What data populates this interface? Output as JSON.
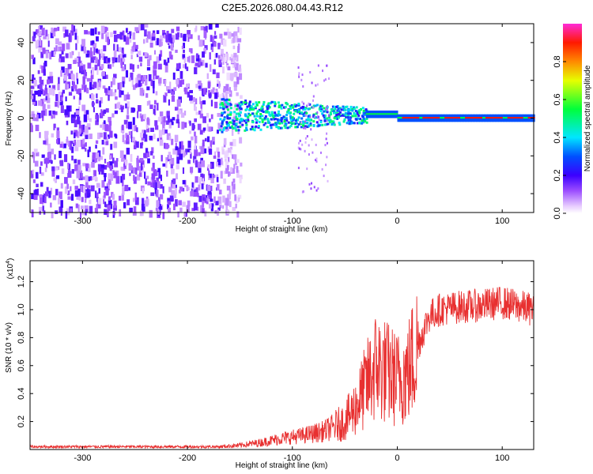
{
  "title": "C2E5.2026.080.04.43.R12",
  "chart_data": [
    {
      "type": "heatmap",
      "title": "",
      "xlabel": "Height of straight line (km)",
      "ylabel": "Frequency (Hz)",
      "xlim": [
        -350,
        130
      ],
      "ylim": [
        -50,
        50
      ],
      "xticks": [
        -300,
        -200,
        -100,
        0,
        100
      ],
      "yticks": [
        -40,
        -20,
        0,
        20,
        40
      ],
      "colorbar": {
        "label": "Normalized spectral amplitude",
        "range": [
          0,
          1
        ],
        "ticks": [
          0.0,
          0.2,
          0.4,
          0.6,
          0.8
        ]
      },
      "regions": [
        {
          "description": "broadband noise",
          "x_range": [
            -350,
            -170
          ],
          "f_range": [
            -50,
            50
          ],
          "amplitude": 0.1
        },
        {
          "description": "signal onset",
          "x_range": [
            -170,
            -30
          ],
          "f_range": [
            -10,
            10
          ],
          "amplitude": 0.4
        },
        {
          "description": "narrowband tone",
          "x_range": [
            -30,
            130
          ],
          "f_center": 0,
          "f_halfwidth": 2,
          "amplitude": 0.9
        }
      ]
    },
    {
      "type": "line",
      "title": "",
      "xlabel": "Height of straight line (km)",
      "ylabel": "SNR (10 * v/v)",
      "yscale_label": "(x10",
      "yscale_exp": "4",
      "yscale_suffix": ")",
      "xlim": [
        -350,
        130
      ],
      "ylim": [
        0,
        1.35
      ],
      "xticks": [
        -300,
        -200,
        -100,
        0,
        100
      ],
      "yticks": [
        0.2,
        0.4,
        0.6,
        0.8,
        1.0,
        1.2
      ],
      "series": [
        {
          "color": "#e83030",
          "x": [
            -350,
            -300,
            -250,
            -200,
            -170,
            -150,
            -130,
            -110,
            -90,
            -70,
            -50,
            -40,
            -30,
            -20,
            -10,
            0,
            10,
            20,
            30,
            40,
            60,
            80,
            100,
            130
          ],
          "y": [
            0.02,
            0.02,
            0.02,
            0.02,
            0.02,
            0.03,
            0.05,
            0.08,
            0.1,
            0.13,
            0.2,
            0.3,
            0.45,
            0.6,
            0.55,
            0.5,
            0.55,
            0.75,
            0.95,
            1.0,
            1.02,
            1.03,
            1.05,
            1.0
          ]
        }
      ]
    }
  ]
}
